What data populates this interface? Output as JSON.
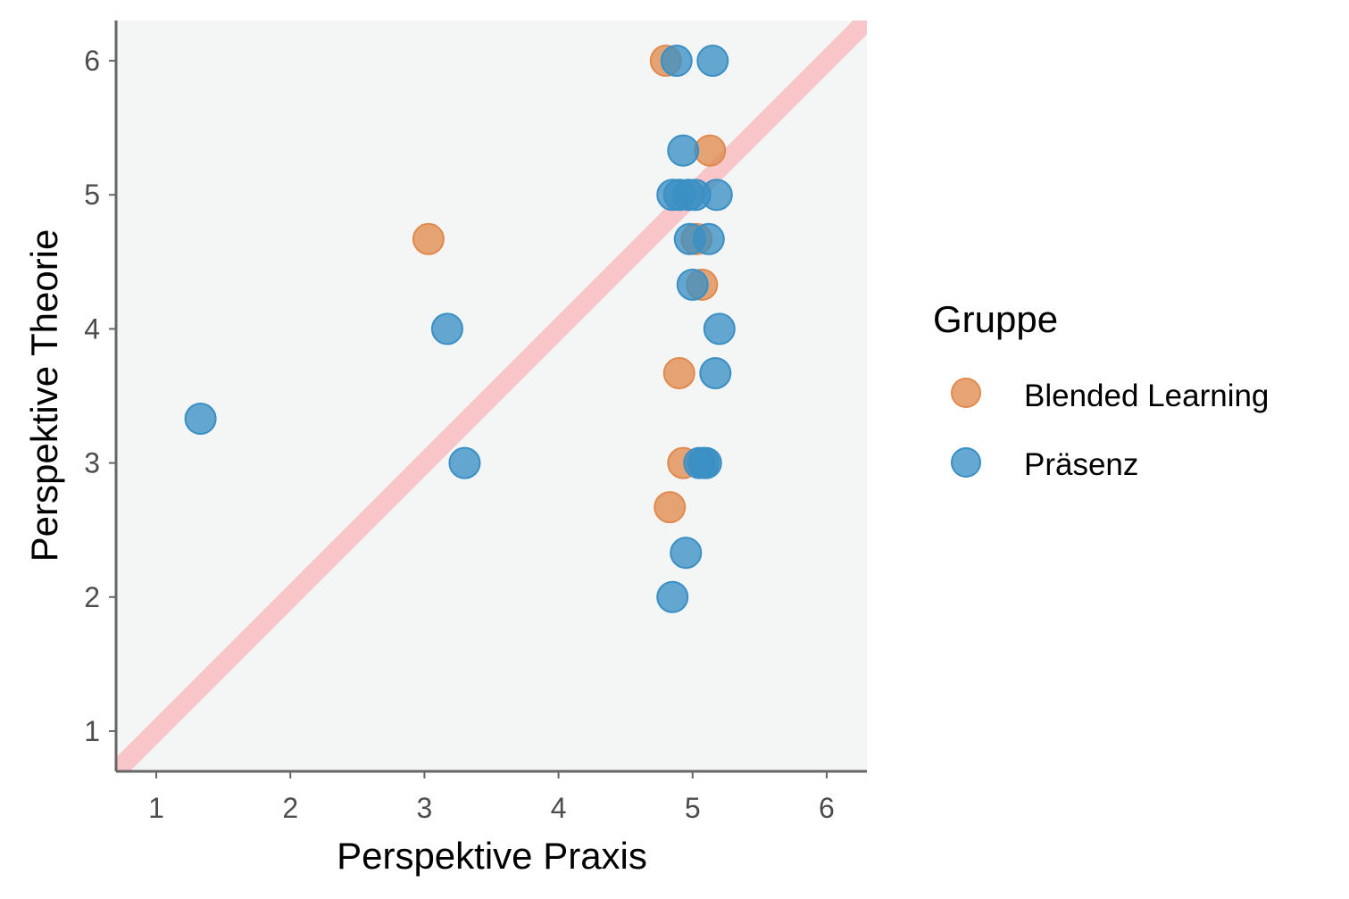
{
  "chart_data": {
    "type": "scatter",
    "xlabel": "Perspektive Praxis",
    "ylabel": "Perspektive Theorie",
    "xlim": [
      0.7,
      6.3
    ],
    "ylim": [
      0.7,
      6.3
    ],
    "xticks": [
      "1",
      "2",
      "3",
      "4",
      "5",
      "6"
    ],
    "yticks": [
      "1",
      "2",
      "3",
      "4",
      "5",
      "6"
    ],
    "reference_line": {
      "type": "identity",
      "slope": 1,
      "intercept": 0,
      "color": "#f8c6c8"
    },
    "panel_background": "#f4f6f6",
    "grid": false,
    "legend": {
      "title": "Gruppe",
      "position": "right"
    },
    "series": [
      {
        "name": "Blended Learning",
        "color": "#e08a4e",
        "points": [
          [
            4.8,
            6.0
          ],
          [
            5.13,
            5.33
          ],
          [
            3.03,
            4.67
          ],
          [
            5.03,
            4.67
          ],
          [
            5.07,
            4.33
          ],
          [
            4.9,
            3.67
          ],
          [
            4.93,
            3.0
          ],
          [
            4.83,
            2.67
          ]
        ]
      },
      {
        "name": "Präsenz",
        "color": "#3a8fc4",
        "points": [
          [
            4.88,
            6.0
          ],
          [
            5.15,
            6.0
          ],
          [
            4.93,
            5.33
          ],
          [
            4.85,
            5.0
          ],
          [
            4.9,
            5.0
          ],
          [
            4.97,
            5.0
          ],
          [
            5.02,
            5.0
          ],
          [
            5.18,
            5.0
          ],
          [
            4.98,
            4.67
          ],
          [
            5.12,
            4.67
          ],
          [
            5.0,
            4.33
          ],
          [
            3.17,
            4.0
          ],
          [
            5.2,
            4.0
          ],
          [
            5.17,
            3.67
          ],
          [
            1.33,
            3.33
          ],
          [
            3.3,
            3.0
          ],
          [
            5.05,
            3.0
          ],
          [
            5.08,
            3.0
          ],
          [
            5.1,
            3.0
          ],
          [
            4.95,
            2.33
          ],
          [
            4.85,
            2.0
          ]
        ]
      }
    ]
  }
}
